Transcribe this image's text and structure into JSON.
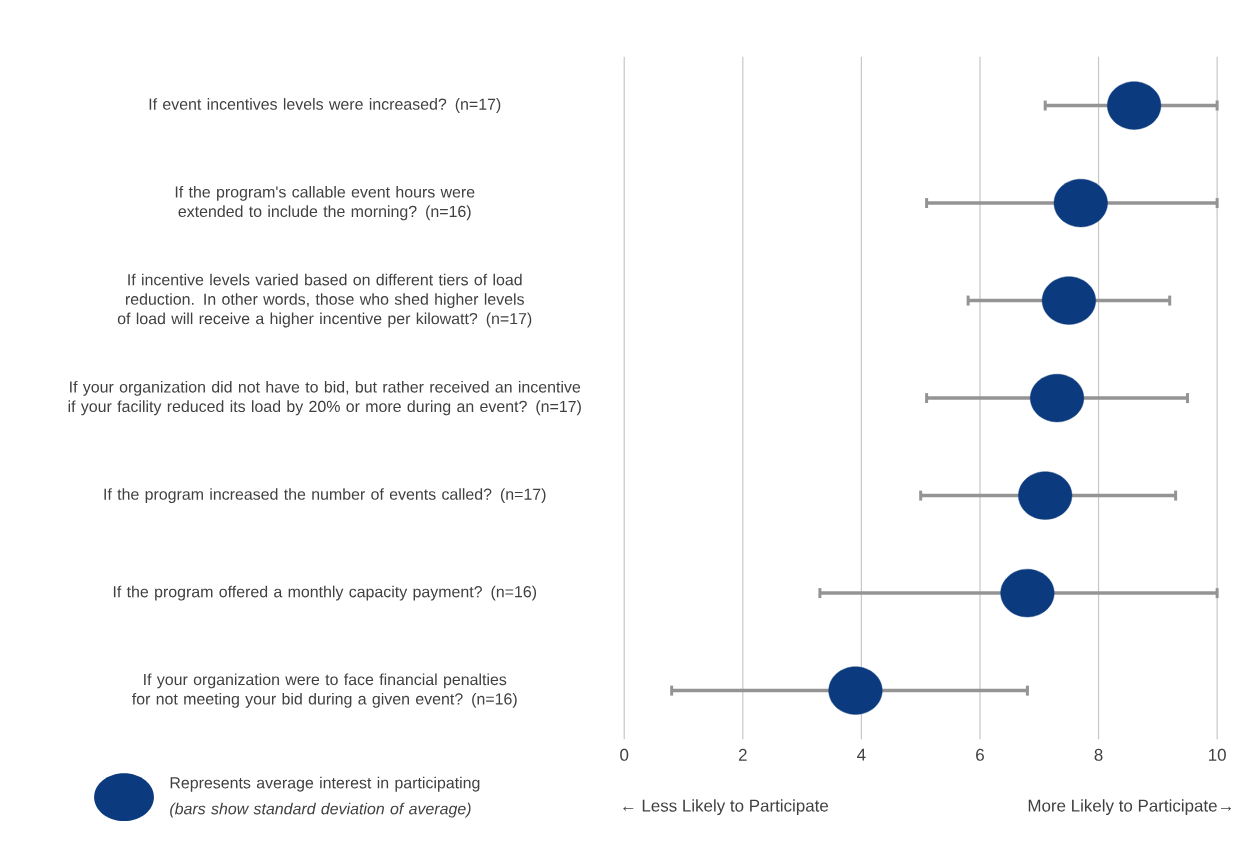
{
  "chart_data": {
    "type": "scatter",
    "orientation": "horizontal",
    "categories": [
      "If event incentives levels were increased? (n=17)",
      "If the program's callable event hours were extended to include the morning? (n=16)",
      "If incentive levels varied based on different tiers of load reduction. In other words, those who shed higher levels of load will receive a higher incentive per kilowatt? (n=17)",
      "If your organization did not have to bid, but rather received an incentive if your facility reduced its load by 20% or more during an event? (n=17)",
      "If the program increased the number of events called? (n=17)",
      "If the program offered a monthly capacity payment? (n=16)",
      "If your organization were to face financial penalties for not meeting your bid during a given event? (n=16)"
    ],
    "series": [
      {
        "name": "Represents average interest in participating *(bars show standard deviation of average)*",
        "color": "#0b3a7e",
        "values": [
          8.6,
          7.7,
          7.5,
          7.3,
          7.1,
          6.8,
          3.9
        ],
        "errors": [
          [
            7.1,
            10
          ],
          [
            5.1,
            10
          ],
          [
            5.8,
            9.2
          ],
          [
            5.1,
            9.5
          ],
          [
            5.0,
            9.3
          ],
          [
            3.3,
            10
          ],
          [
            0.8,
            6.8
          ]
        ]
      }
    ],
    "xlim": [
      0,
      10
    ],
    "xticks": [
      0,
      2,
      4,
      6,
      8,
      10
    ],
    "grid": "x",
    "legend": "bottom left",
    "marker": "circle",
    "annotations": [
      "← Less Likely to Participate",
      "More Likely to Participate→"
    ]
  }
}
